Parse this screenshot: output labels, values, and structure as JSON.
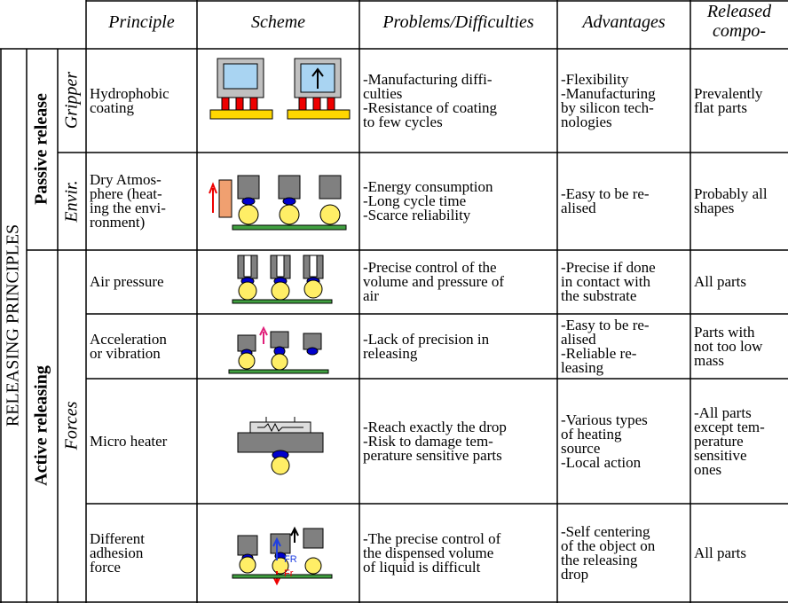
{
  "header": {
    "columns": [
      [
        "Principle"
      ],
      [
        "Scheme"
      ],
      [
        "Problems/Difficulties"
      ],
      [
        "Advantages"
      ],
      [
        "Released",
        "compo-"
      ]
    ]
  },
  "side": {
    "title": "RELEASING PRINCIPLES",
    "groups": [
      "Passive release",
      "Active releasing"
    ],
    "subgroups": [
      "Gripper",
      "Envir.",
      "Forces"
    ]
  },
  "rows": [
    {
      "principle": [
        "Hydrophobic",
        "coating"
      ],
      "problems": [
        "-Manufacturing diffi-",
        "culties",
        "-Resistance of coating",
        "to few cycles"
      ],
      "advantages": [
        "-Flexibility",
        "-Manufacturing",
        "by silicon tech-",
        "nologies"
      ],
      "released": [
        "Prevalently",
        "flat parts"
      ]
    },
    {
      "principle": [
        "Dry Atmos-",
        "phere (heat-",
        "ing the envi-",
        "ronment)"
      ],
      "problems": [
        "-Energy consumption",
        "-Long cycle time",
        "-Scarce reliability"
      ],
      "advantages": [
        "-Easy to be re-",
        "alised"
      ],
      "released": [
        "Probably all",
        "shapes"
      ]
    },
    {
      "principle": [
        "Air pressure"
      ],
      "problems": [
        "-Precise control of the",
        "volume and pressure of",
        "air"
      ],
      "advantages": [
        "-Precise if done",
        "in contact with",
        "the substrate"
      ],
      "released": [
        "All parts"
      ]
    },
    {
      "principle": [
        "Acceleration",
        "or vibration"
      ],
      "problems": [
        "-Lack of precision in",
        "releasing"
      ],
      "advantages": [
        "-Easy to be re-",
        "alised",
        "-Reliable re-",
        "leasing"
      ],
      "released": [
        "Parts with",
        "not too low",
        "mass"
      ]
    },
    {
      "principle": [
        "Micro heater"
      ],
      "problems": [
        "-Reach exactly the drop",
        "-Risk to damage tem-",
        "perature sensitive parts"
      ],
      "advantages": [
        "-Various types",
        "of heating",
        "source",
        "-Local action"
      ],
      "released": [
        "-All parts",
        "except tem-",
        "perature",
        "sensitive",
        "ones"
      ]
    },
    {
      "principle": [
        "Different",
        "adhesion",
        "force"
      ],
      "problems": [
        "-The precise control of",
        "the dispensed volume",
        "of liquid is difficult"
      ],
      "advantages": [
        "-Self centering",
        "of the object on",
        "the releasing",
        "drop"
      ],
      "released": [
        "All parts"
      ],
      "scheme_labels": [
        "FR",
        "Fr"
      ]
    }
  ]
}
